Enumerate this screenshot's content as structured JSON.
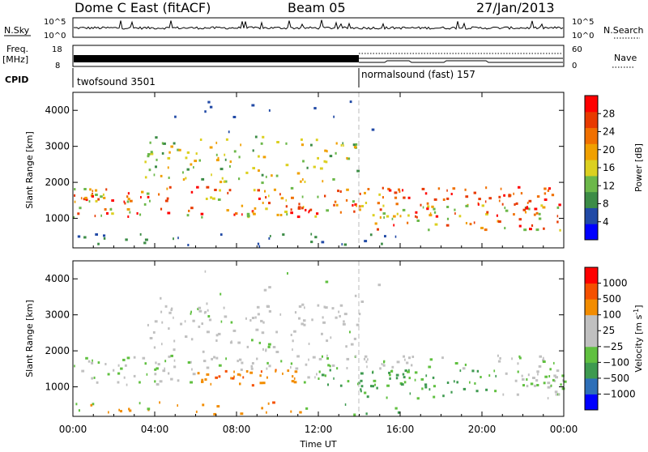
{
  "header": {
    "station": "Dome C East (fitACF)",
    "beam": "Beam 05",
    "date": "27/Jan/2013"
  },
  "colors": {
    "power": [
      "#0000ff",
      "#214aa6",
      "#3c8c46",
      "#6cb84a",
      "#dcd020",
      "#f0a000",
      "#f07000",
      "#e83a00",
      "#ff0000"
    ],
    "velocity": [
      "#ff0000",
      "#f55000",
      "#f28c00",
      "#c0c0c0",
      "#c0c0c0",
      "#60c040",
      "#3e9a50",
      "#2e6fb8",
      "#0000ff"
    ]
  },
  "panels": {
    "nsky": {
      "label": "N.Sky",
      "right_label": "N.Search",
      "left_ticks": [
        "10^5",
        "10^0"
      ],
      "right_ticks": [
        "10^5",
        "10^0"
      ]
    },
    "freq": {
      "label": "Freq.",
      "unit": "[MHz]",
      "left_ticks": [
        "18",
        "8"
      ],
      "right_label": "Nave",
      "right_ticks": [
        "60",
        "0"
      ]
    },
    "cpid": {
      "label": "CPID",
      "modes": [
        "twofsound 3501",
        "normalsound (fast) 157"
      ]
    }
  },
  "chart_data": [
    {
      "type": "heatmap",
      "title": "",
      "quantity": "Power",
      "xlabel": "",
      "ylabel": "Slant Range [km]",
      "colorbar_label": "Power [dB]",
      "colorbar_ticks": [
        "4",
        "8",
        "12",
        "16",
        "20",
        "24",
        "28"
      ],
      "xlim": [
        "00:00",
        "24:00"
      ],
      "ylim": [
        180,
        4500
      ],
      "xticks": [
        "00:00",
        "04:00",
        "08:00",
        "12:00",
        "16:00",
        "20:00",
        "00:00"
      ],
      "yticks": [
        1000,
        2000,
        3000,
        4000
      ]
    },
    {
      "type": "heatmap",
      "title": "",
      "quantity": "Velocity",
      "xlabel": "Time UT",
      "ylabel": "Slant Range [km]",
      "colorbar_label": "Velocity [m s",
      "colorbar_label_sup": "-1",
      "colorbar_label_end": "]",
      "colorbar_ticks": [
        "1000",
        "500",
        "100",
        "25",
        "−25",
        "−100",
        "−500",
        "−1000"
      ],
      "xlim": [
        "00:00",
        "24:00"
      ],
      "ylim": [
        180,
        4500
      ],
      "xticks": [
        "00:00",
        "04:00",
        "08:00",
        "12:00",
        "16:00",
        "20:00",
        "00:00"
      ],
      "yticks": [
        1000,
        2000,
        3000,
        4000
      ]
    }
  ]
}
